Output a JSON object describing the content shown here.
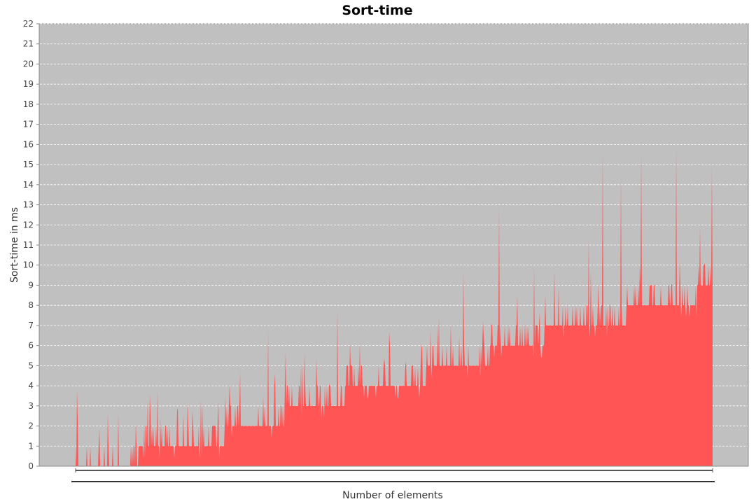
{
  "chart_data": {
    "type": "area",
    "title": "Sort-time",
    "xlabel": "Number of elements",
    "ylabel": "Sort-time in ms",
    "ylim": [
      0,
      22
    ],
    "y_ticks": [
      0,
      1,
      2,
      3,
      4,
      5,
      6,
      7,
      8,
      9,
      10,
      11,
      12,
      13,
      14,
      15,
      16,
      17,
      18,
      19,
      20,
      21,
      22
    ],
    "x_tick_labels_visible": false,
    "grid": true,
    "legend": "none",
    "colors": {
      "plot_background": "#c0c0c0",
      "series": "#ff5555",
      "grid": "#ffffff"
    },
    "series": [
      {
        "x": [
          0,
          5,
          10,
          15,
          20,
          25,
          30,
          35,
          40,
          45,
          50,
          55,
          60,
          65,
          70,
          75,
          80,
          85,
          90,
          95,
          100
        ],
        "baseline_values": [
          0,
          0,
          0.5,
          1,
          1,
          1.7,
          2,
          2.9,
          3.1,
          4,
          4,
          4.5,
          5,
          5.5,
          6,
          6.7,
          7,
          7.3,
          8,
          8.4,
          8.6
        ],
        "peaks": [
          {
            "x": 0.2,
            "value": 3.8
          },
          {
            "x": 3.7,
            "value": 1.9
          },
          {
            "x": 16.0,
            "value": 2.9
          },
          {
            "x": 30.2,
            "value": 6.7
          },
          {
            "x": 41.1,
            "value": 7.8
          },
          {
            "x": 49.2,
            "value": 6.7
          },
          {
            "x": 55.7,
            "value": 6.8
          },
          {
            "x": 60.9,
            "value": 9.7
          },
          {
            "x": 66.5,
            "value": 12.9
          },
          {
            "x": 72.0,
            "value": 9.9
          },
          {
            "x": 80.6,
            "value": 11.3
          },
          {
            "x": 82.7,
            "value": 15.6
          },
          {
            "x": 85.6,
            "value": 14.4
          },
          {
            "x": 88.8,
            "value": 15.6
          },
          {
            "x": 94.3,
            "value": 15.8
          },
          {
            "x": 98.0,
            "value": 11.9
          },
          {
            "x": 99.9,
            "value": 14.9
          }
        ]
      }
    ]
  }
}
